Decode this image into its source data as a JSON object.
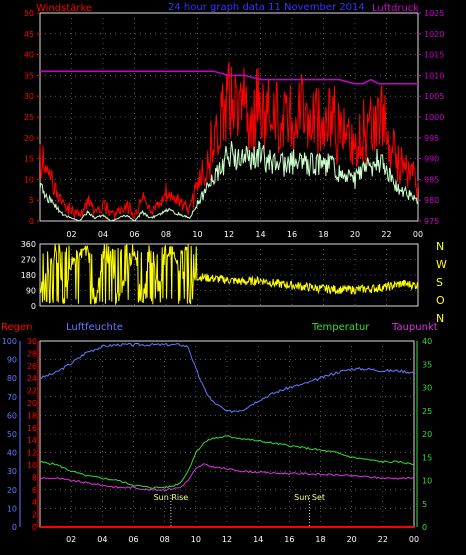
{
  "chart_data": [
    {
      "type": "line",
      "panel": "wind",
      "title": "24 hour graph data  11 November 2014",
      "label_left": "Windstärke",
      "label_right": "Luftdruck",
      "colors": {
        "wind": "#ff0000",
        "gust": "#ff0000",
        "avg": "#ccffcc",
        "pressure": "#cc00cc",
        "title": "#3333ff",
        "left_axis": "#ff0000",
        "right_axis": "#cc00cc"
      },
      "ylim": [
        0,
        50
      ],
      "y_ticks": [
        "0",
        "5",
        "10",
        "15",
        "20",
        "25",
        "30",
        "35",
        "40",
        "45",
        "50"
      ],
      "y2lim": [
        975,
        1025
      ],
      "y2_ticks": [
        "975",
        "980",
        "985",
        "990",
        "995",
        "1000",
        "1005",
        "1010",
        "1015",
        "1020",
        "1025"
      ],
      "x_ticks": [
        "02",
        "04",
        "06",
        "08",
        "10",
        "12",
        "14",
        "16",
        "18",
        "20",
        "22",
        "00"
      ],
      "series": [
        {
          "name": "Windstärke",
          "x": [
            0,
            0.5,
            1,
            1.5,
            2,
            2.5,
            3,
            3.5,
            4,
            4.5,
            5,
            5.5,
            6,
            6.5,
            7,
            7.5,
            8,
            8.5,
            9,
            9.5,
            10,
            10.5,
            11,
            11.5,
            12,
            12.5,
            13,
            13.5,
            14,
            14.5,
            15,
            15.5,
            16,
            16.5,
            17,
            17.5,
            18,
            18.5,
            19,
            19.5,
            20,
            20.5,
            21,
            21.5,
            22,
            22.5,
            23,
            23.5,
            24
          ],
          "values": [
            12,
            8,
            5,
            2,
            1,
            0,
            3,
            1,
            2,
            0,
            1,
            2,
            0,
            3,
            1,
            2,
            4,
            3,
            2,
            1,
            6,
            10,
            15,
            18,
            24,
            20,
            22,
            21,
            23,
            20,
            21,
            19,
            20,
            22,
            19,
            20,
            18,
            22,
            16,
            15,
            14,
            17,
            19,
            21,
            18,
            12,
            10,
            9,
            6
          ]
        },
        {
          "name": "Luftdruck",
          "x": [
            0,
            2,
            4,
            6,
            8,
            10,
            11,
            12,
            13,
            14,
            15,
            16,
            17,
            18,
            19,
            20,
            20.5,
            21,
            21.5,
            22,
            23,
            24
          ],
          "values": [
            1011,
            1011,
            1011,
            1011,
            1011,
            1011,
            1011,
            1010,
            1010,
            1009,
            1009,
            1009,
            1009,
            1009,
            1009,
            1008,
            1008,
            1009,
            1008,
            1008,
            1008,
            1008
          ]
        }
      ]
    },
    {
      "type": "scatter",
      "panel": "direction",
      "color": "#ffff00",
      "ylim": [
        0,
        360
      ],
      "y_ticks": [
        "0",
        "90",
        "180",
        "270",
        "360"
      ],
      "right_labels": [
        "N",
        "W",
        "S",
        "O",
        "N"
      ],
      "series": [
        {
          "name": "",
          "x": [
            0,
            0.5,
            1,
            1.5,
            2,
            2.5,
            3,
            3.5,
            4,
            4.5,
            5,
            5.5,
            6,
            6.5,
            7,
            7.5,
            8,
            8.5,
            9,
            9.5,
            10,
            11,
            12,
            13,
            14,
            15,
            16,
            17,
            18,
            19,
            20,
            21,
            22,
            23,
            24
          ],
          "values": [
            90,
            180,
            330,
            90,
            260,
            300,
            330,
            10,
            300,
            260,
            60,
            200,
            330,
            20,
            340,
            100,
            300,
            320,
            200,
            150,
            170,
            160,
            150,
            140,
            150,
            130,
            120,
            110,
            100,
            95,
            95,
            100,
            110,
            130,
            120
          ]
        }
      ]
    },
    {
      "type": "line",
      "panel": "humidity-temp",
      "label_regen": "Regen",
      "label_luftfeuchte": "Luftfeuchte",
      "label_temperatur": "Temperatur",
      "label_taupunkt": "Taupunkt",
      "colors": {
        "regen": "#ff0000",
        "luftfeuchte": "#6677ff",
        "temperatur": "#33dd33",
        "taupunkt": "#dd33dd",
        "axis_regen": "#ff0000",
        "axis_hum": "#6677ff",
        "axis_temp": "#33dd33"
      },
      "humidity_ylim": [
        0,
        100
      ],
      "humidity_ticks": [
        "0",
        "10",
        "20",
        "30",
        "40",
        "50",
        "60",
        "70",
        "80",
        "90",
        "100"
      ],
      "rain_ylim": [
        0,
        30
      ],
      "rain_ticks": [
        "0",
        "2",
        "4",
        "6",
        "8",
        "10",
        "12",
        "14",
        "16",
        "18",
        "20",
        "22",
        "24",
        "26",
        "28",
        "30"
      ],
      "temp_ylim": [
        0,
        40
      ],
      "temp_ticks": [
        "0",
        "5",
        "10",
        "15",
        "20",
        "25",
        "30",
        "35",
        "40"
      ],
      "x_ticks": [
        "02",
        "04",
        "06",
        "08",
        "10",
        "12",
        "14",
        "16",
        "18",
        "20",
        "22",
        "00"
      ],
      "annotations": [
        {
          "label": "Sun Rise",
          "x": 8.4
        },
        {
          "label": "Sun Set",
          "x": 17.3
        }
      ],
      "series": [
        {
          "name": "Luftfeuchte",
          "axis": "humidity",
          "x": [
            0,
            1,
            2,
            3,
            4,
            5,
            6,
            7,
            8,
            9,
            9.5,
            10,
            10.5,
            11,
            12,
            13,
            14,
            15,
            16,
            17,
            18,
            19,
            20,
            21,
            22,
            23,
            24
          ],
          "values": [
            80,
            83,
            88,
            94,
            97,
            98,
            98,
            98,
            98,
            98,
            97,
            85,
            75,
            68,
            62,
            63,
            68,
            72,
            75,
            77,
            80,
            83,
            85,
            85,
            84,
            84,
            83
          ]
        },
        {
          "name": "Temperatur",
          "axis": "temp",
          "x": [
            0,
            1,
            2,
            3,
            4,
            5,
            6,
            7,
            8,
            8.5,
            9,
            9.5,
            10,
            10.5,
            11,
            12,
            13,
            14,
            15,
            16,
            17,
            18,
            19,
            20,
            21,
            22,
            23,
            24
          ],
          "values": [
            14,
            13.5,
            12,
            11,
            10.5,
            10,
            9,
            8.5,
            8.5,
            8.8,
            9.5,
            12,
            16,
            18,
            19,
            19.5,
            19,
            18.5,
            18,
            17.5,
            17,
            16.5,
            16,
            15,
            14.5,
            14,
            14,
            13.5
          ]
        },
        {
          "name": "Taupunkt",
          "axis": "temp",
          "x": [
            0,
            1,
            2,
            3,
            4,
            5,
            6,
            7,
            8,
            9,
            9.5,
            10,
            10.5,
            11,
            12,
            13,
            14,
            15,
            16,
            17,
            18,
            19,
            20,
            21,
            22,
            23,
            24
          ],
          "values": [
            10.5,
            10.5,
            10,
            9.5,
            9,
            8.5,
            8.5,
            8,
            8,
            8.5,
            10,
            12.5,
            13.5,
            13,
            12.5,
            12,
            11.8,
            11.6,
            11.5,
            11.5,
            11.3,
            11.2,
            11,
            10.8,
            10.5,
            10.5,
            10.5
          ]
        },
        {
          "name": "Regen",
          "axis": "rain",
          "x": [
            0,
            24
          ],
          "values": [
            0,
            0
          ]
        }
      ]
    }
  ]
}
